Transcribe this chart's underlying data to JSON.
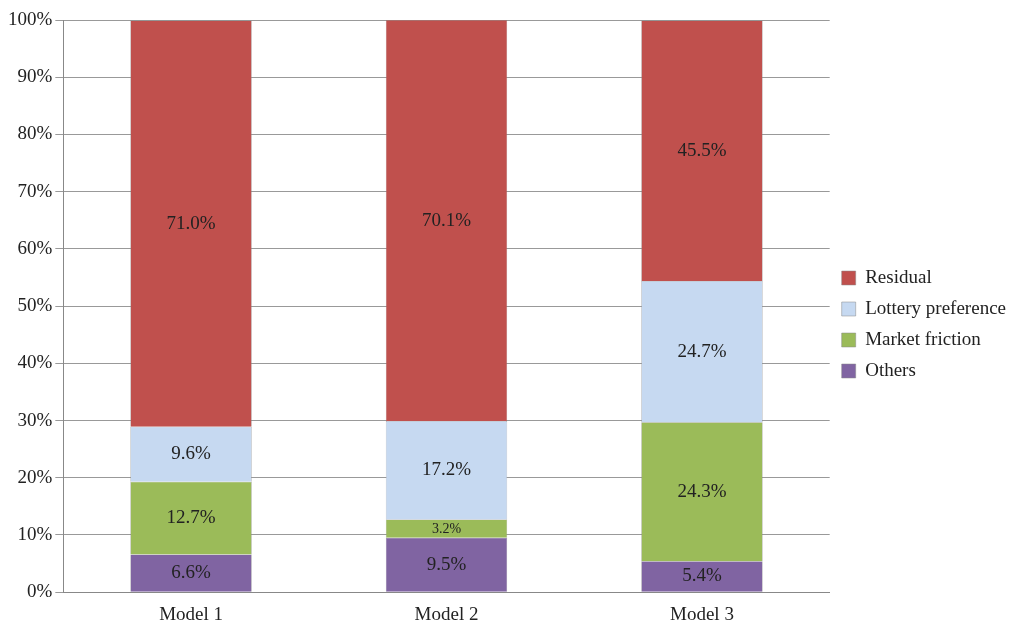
{
  "chart_data": {
    "type": "bar",
    "stacked": true,
    "categories": [
      "Model 1",
      "Model 2",
      "Model 3"
    ],
    "series": [
      {
        "name": "Others",
        "color": "#8064a2",
        "values": [
          6.6,
          9.5,
          5.4
        ],
        "value_labels": [
          "6.6%",
          "9.5%",
          "5.4%"
        ]
      },
      {
        "name": "Market friction",
        "color": "#9bbb59",
        "values": [
          12.7,
          3.2,
          24.3
        ],
        "value_labels": [
          "12.7%",
          "3.2%",
          "24.3%"
        ]
      },
      {
        "name": "Lottery preference",
        "color": "#c6d9f1",
        "values": [
          9.6,
          17.2,
          24.7
        ],
        "value_labels": [
          "9.6%",
          "17.2%",
          "24.7%"
        ]
      },
      {
        "name": "Residual",
        "color": "#c0504d",
        "values": [
          71.0,
          70.1,
          45.5
        ],
        "value_labels": [
          "71.0%",
          "70.1%",
          "45.5%"
        ]
      }
    ],
    "ylim": [
      0,
      100
    ],
    "yticks": [
      {
        "value": 0,
        "label": "0%"
      },
      {
        "value": 10,
        "label": "10%"
      },
      {
        "value": 20,
        "label": "20%"
      },
      {
        "value": 30,
        "label": "30%"
      },
      {
        "value": 40,
        "label": "40%"
      },
      {
        "value": 50,
        "label": "50%"
      },
      {
        "value": 60,
        "label": "60%"
      },
      {
        "value": 70,
        "label": "70%"
      },
      {
        "value": 80,
        "label": "80%"
      },
      {
        "value": 90,
        "label": "90%"
      },
      {
        "value": 100,
        "label": "100%"
      }
    ],
    "grid": "y",
    "legend": "right"
  }
}
